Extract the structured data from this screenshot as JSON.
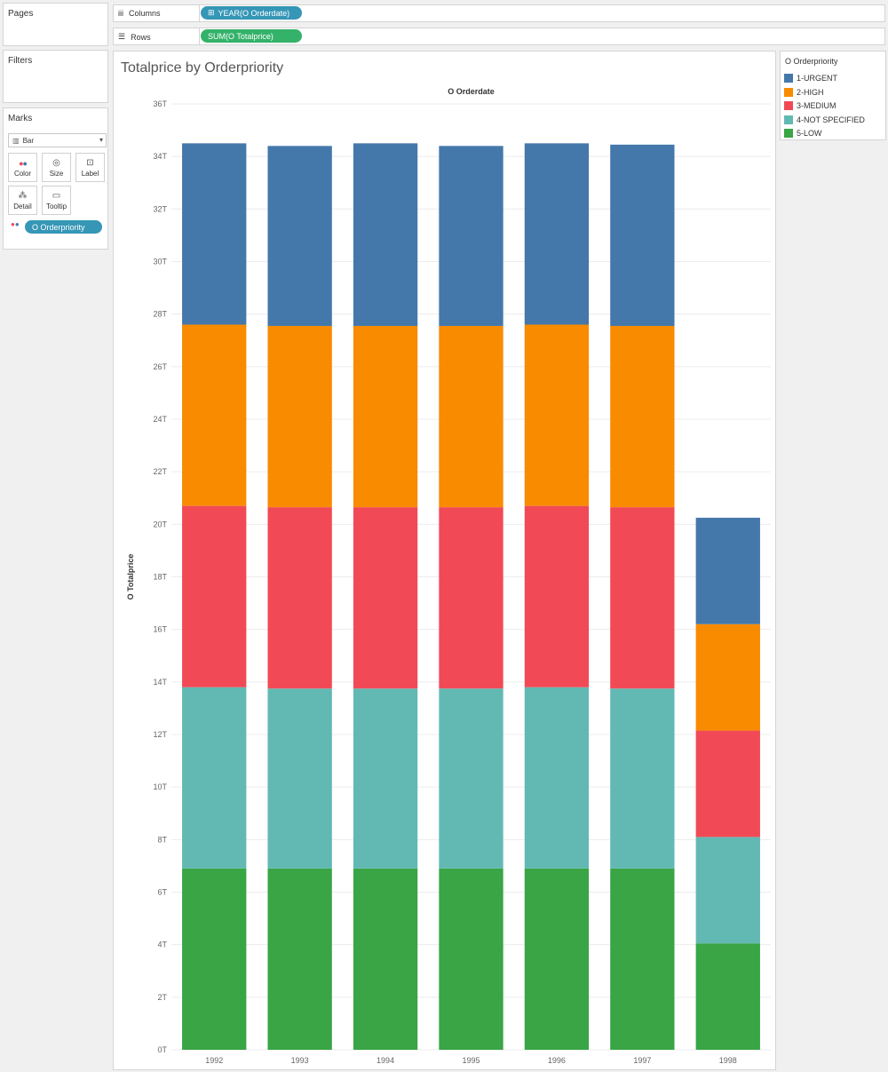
{
  "pages": {
    "title": "Pages"
  },
  "filters": {
    "title": "Filters"
  },
  "marks": {
    "title": "Marks",
    "mark_type": "Bar",
    "buttons": {
      "color": "Color",
      "size": "Size",
      "label": "Label",
      "detail": "Detail",
      "tooltip": "Tooltip"
    },
    "color_field": "O Orderpriority"
  },
  "shelves": {
    "columns_label": "Columns",
    "columns_pill": "YEAR(O Orderdate)",
    "rows_label": "Rows",
    "rows_pill": "SUM(O Totalprice)"
  },
  "legend": {
    "title": "O Orderpriority",
    "items": [
      {
        "label": "1-URGENT",
        "color": "#4478ab"
      },
      {
        "label": "2-HIGH",
        "color": "#f88b00"
      },
      {
        "label": "3-MEDIUM",
        "color": "#f14a56"
      },
      {
        "label": "4-NOT SPECIFIED",
        "color": "#62b9b3"
      },
      {
        "label": "5-LOW",
        "color": "#39a545"
      }
    ]
  },
  "chart_data": {
    "type": "bar",
    "stacked": true,
    "title": "Totalprice by Orderpriority",
    "xlabel": "O Orderdate",
    "ylabel": "O Totalprice",
    "ylim": [
      0,
      36
    ],
    "y_ticks": [
      "0T",
      "2T",
      "4T",
      "6T",
      "8T",
      "10T",
      "12T",
      "14T",
      "16T",
      "18T",
      "20T",
      "22T",
      "24T",
      "26T",
      "28T",
      "30T",
      "32T",
      "34T",
      "36T"
    ],
    "categories": [
      "1992",
      "1993",
      "1994",
      "1995",
      "1996",
      "1997",
      "1998"
    ],
    "series": [
      {
        "name": "5-LOW",
        "color": "#39a545",
        "values": [
          6.9,
          6.9,
          6.9,
          6.9,
          6.9,
          6.9,
          4.05
        ]
      },
      {
        "name": "4-NOT SPECIFIED",
        "color": "#62b9b3",
        "values": [
          6.9,
          6.85,
          6.85,
          6.85,
          6.9,
          6.85,
          4.05
        ]
      },
      {
        "name": "3-MEDIUM",
        "color": "#f14a56",
        "values": [
          6.9,
          6.9,
          6.9,
          6.9,
          6.9,
          6.9,
          4.05
        ]
      },
      {
        "name": "2-HIGH",
        "color": "#f88b00",
        "values": [
          6.9,
          6.9,
          6.9,
          6.9,
          6.9,
          6.9,
          4.05
        ]
      },
      {
        "name": "1-URGENT",
        "color": "#4478ab",
        "values": [
          6.9,
          6.85,
          6.95,
          6.85,
          6.9,
          6.9,
          4.05
        ]
      }
    ]
  }
}
